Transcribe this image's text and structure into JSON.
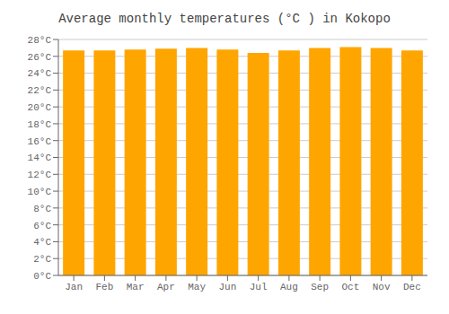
{
  "chart_data": {
    "type": "bar",
    "title": "Average monthly temperatures (°C ) in Kokopo",
    "categories": [
      "Jan",
      "Feb",
      "Mar",
      "Apr",
      "May",
      "Jun",
      "Jul",
      "Aug",
      "Sep",
      "Oct",
      "Nov",
      "Dec"
    ],
    "values": [
      26.7,
      26.7,
      26.8,
      26.9,
      27.0,
      26.8,
      26.4,
      26.7,
      27.0,
      27.1,
      27.0,
      26.7
    ],
    "color": "#FFA500",
    "ylim": [
      0,
      28
    ],
    "yticks": [
      {
        "value": 0,
        "label": "0°C"
      },
      {
        "value": 2,
        "label": "2°C"
      },
      {
        "value": 4,
        "label": "4°C"
      },
      {
        "value": 6,
        "label": "6°C"
      },
      {
        "value": 8,
        "label": "8°C"
      },
      {
        "value": 10,
        "label": "10°C"
      },
      {
        "value": 12,
        "label": "12°C"
      },
      {
        "value": 14,
        "label": "14°C"
      },
      {
        "value": 16,
        "label": "16°C"
      },
      {
        "value": 18,
        "label": "18°C"
      },
      {
        "value": 20,
        "label": "20°C"
      },
      {
        "value": 22,
        "label": "22°C"
      },
      {
        "value": 24,
        "label": "24°C"
      },
      {
        "value": 26,
        "label": "26°C"
      },
      {
        "value": 28,
        "label": "28°C"
      }
    ],
    "grid": true
  }
}
